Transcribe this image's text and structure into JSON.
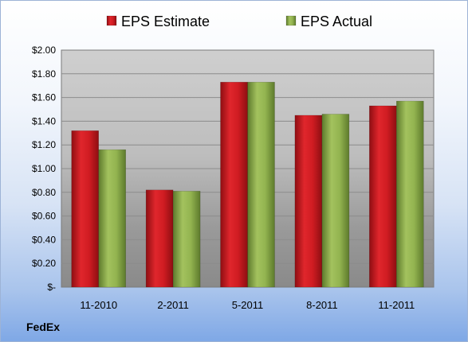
{
  "company": "FedEx",
  "chart_data": {
    "type": "bar",
    "categories": [
      "11-2010",
      "2-2011",
      "5-2011",
      "8-2011",
      "11-2011"
    ],
    "series": [
      {
        "name": "EPS Estimate",
        "values": [
          1.32,
          0.82,
          1.73,
          1.45,
          1.53
        ],
        "color": "#c8191f"
      },
      {
        "name": "EPS Actual",
        "values": [
          1.16,
          0.81,
          1.73,
          1.46,
          1.57
        ],
        "color": "#8fae4e"
      }
    ],
    "yticks": [
      "$-",
      "$0.20",
      "$0.40",
      "$0.60",
      "$0.80",
      "$1.00",
      "$1.20",
      "$1.40",
      "$1.60",
      "$1.80",
      "$2.00"
    ],
    "ylim": [
      0,
      2.0
    ],
    "grid": true,
    "legend_position": "top"
  }
}
